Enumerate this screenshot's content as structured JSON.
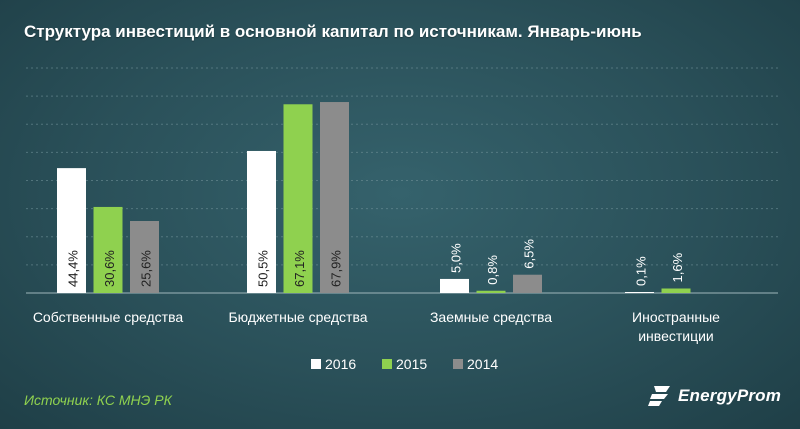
{
  "title": "Структура инвестиций в основной капитал по  источникам. Январь-июнь",
  "source_text": "Источник: КС МНЭ РК",
  "brand": "EnergyProm",
  "colors": {
    "2016": "#ffffff",
    "2015": "#8fd14f",
    "2014": "#8c8c8c",
    "axis_label": "#ffffff",
    "source": "#8fd14f"
  },
  "chart_data": {
    "type": "bar",
    "title": "Структура инвестиций в основной капитал по  источникам. Январь-июнь",
    "xlabel": "",
    "ylabel": "",
    "ylim": [
      0,
      80
    ],
    "grid": true,
    "legend_position": "bottom",
    "categories": [
      [
        "Собственные средства"
      ],
      [
        "Бюджетные средства"
      ],
      [
        "Заемные средства"
      ],
      [
        "Иностранные",
        "инвестиции"
      ]
    ],
    "series": [
      {
        "name": "2016",
        "values": [
          44.4,
          50.5,
          5.0,
          0.1
        ],
        "labels": [
          "44,4%",
          "50,5%",
          "5,0%",
          "0,1%"
        ]
      },
      {
        "name": "2015",
        "values": [
          30.6,
          67.1,
          0.8,
          1.6
        ],
        "labels": [
          "30,6%",
          "67,1%",
          "0,8%",
          "1,6%"
        ]
      },
      {
        "name": "2014",
        "values": [
          25.6,
          67.9,
          6.5,
          0
        ],
        "labels": [
          "25,6%",
          "67,9%",
          "6,5%",
          ""
        ]
      }
    ]
  }
}
